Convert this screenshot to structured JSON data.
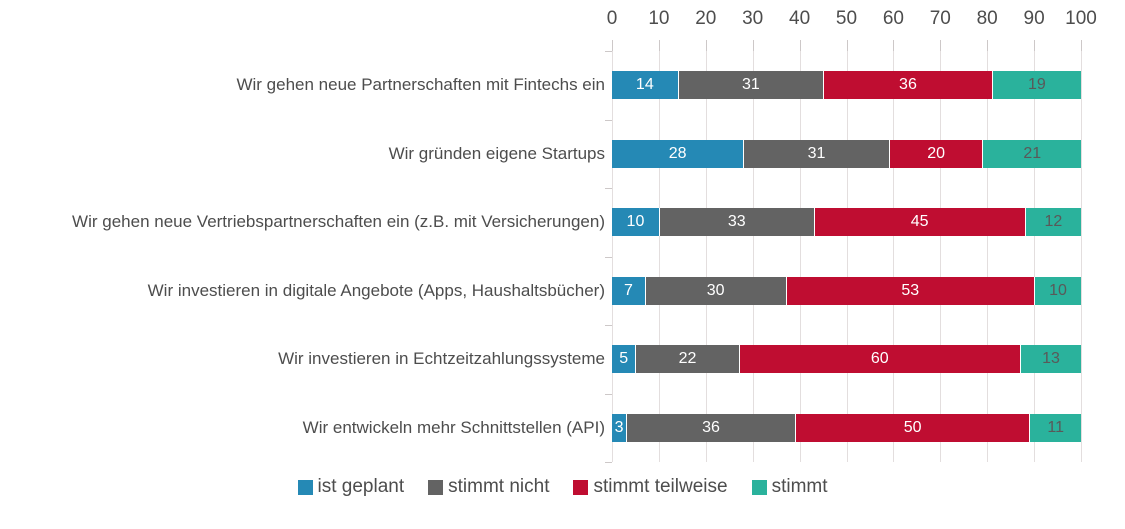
{
  "chart_data": {
    "type": "bar",
    "orientation": "horizontal",
    "stacked": true,
    "title": "",
    "xlabel": "",
    "ylabel": "",
    "xlim": [
      0,
      100
    ],
    "x_ticks": [
      0,
      10,
      20,
      30,
      40,
      50,
      60,
      70,
      80,
      90,
      100
    ],
    "grid": "vertical",
    "legend_position": "bottom",
    "categories": [
      "Wir gehen neue Partnerschaften mit Fintechs ein",
      "Wir gründen eigene Startups",
      "Wir gehen neue Vertriebspartnerschaften ein (z.B. mit Versicherungen)",
      "Wir investieren in digitale Angebote (Apps, Haushaltsbücher)",
      "Wir investieren in Echtzeitzahlungssysteme",
      "Wir entwickeln mehr Schnittstellen (API)"
    ],
    "series": [
      {
        "name": "ist geplant",
        "color": "#2589b5",
        "label_color": "#ffffff",
        "values": [
          14,
          28,
          10,
          7,
          5,
          3
        ]
      },
      {
        "name": "stimmt nicht",
        "color": "#636363",
        "label_color": "#ffffff",
        "values": [
          31,
          31,
          33,
          30,
          22,
          36
        ]
      },
      {
        "name": "stimmt teilweise",
        "color": "#bf0d31",
        "label_color": "#ffffff",
        "values": [
          36,
          20,
          45,
          53,
          60,
          50
        ]
      },
      {
        "name": "stimmt",
        "color": "#2ab29c",
        "label_color": "#595959",
        "values": [
          19,
          21,
          12,
          10,
          13,
          11
        ]
      }
    ]
  },
  "style_colors": {
    "axis_text": "#4d4d4d",
    "gridline": "#e3dede",
    "tick": "#cdc8c8",
    "background": "#ffffff"
  }
}
